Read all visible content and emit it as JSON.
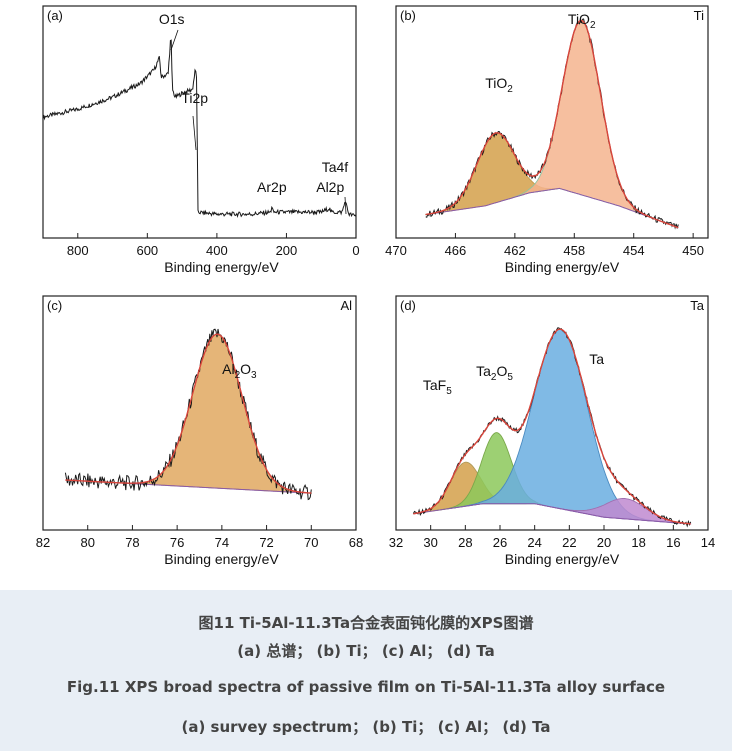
{
  "caption": {
    "cn_title": "图11 Ti-5Al-11.3Ta合金表面钝化膜的XPS图谱",
    "cn_sub": "(a) 总谱； (b) Ti； (c) Al； (d) Ta",
    "en_title": "Fig.11 XPS broad spectra of passive film on Ti-5Al-11.3Ta alloy surface",
    "en_sub": "(a) survey spectrum； (b) Ti； (c) Al； (d) Ta"
  },
  "colors": {
    "frame": "#222222",
    "spectrum": "#1a1a1a",
    "envelope": "#d9453b",
    "background_line": "#8a5aa8",
    "tio2_fill": "#f5b48e",
    "tio2_small_fill": "#d4a04a",
    "al2o3_fill": "#e0a860",
    "ta_fill": "#6aaee0",
    "ta2o5_fill": "#8cc85a",
    "taf5_fill": "#d4a04a",
    "tail_fill": "#c08ad0"
  },
  "chart_data": [
    {
      "panel": "(a)",
      "type": "line",
      "xlabel": "Binding energy/eV",
      "ylabel": "",
      "xlim": [
        900,
        0
      ],
      "reversed_x": true,
      "x_ticks": [
        "800",
        "600",
        "400",
        "200",
        "0"
      ],
      "peak_labels": [
        {
          "text": "O1s",
          "x": 530
        },
        {
          "text": "Ti2p",
          "x": 458
        },
        {
          "text": "Ar2p",
          "x": 242
        },
        {
          "text": "Al2p",
          "x": 74
        },
        {
          "text": "Ta4f",
          "x": 26
        }
      ],
      "series": [
        {
          "values": [
            [
              900,
              58
            ],
            [
              800,
              62
            ],
            [
              700,
              68
            ],
            [
              620,
              75
            ],
            [
              580,
              82
            ],
            [
              565,
              88
            ],
            [
              560,
              78
            ],
            [
              540,
              80
            ],
            [
              532,
              100
            ],
            [
              528,
              72
            ],
            [
              520,
              68
            ],
            [
              500,
              70
            ],
            [
              470,
              72
            ],
            [
              462,
              82
            ],
            [
              458,
              78
            ],
            [
              455,
              10
            ],
            [
              400,
              9
            ],
            [
              300,
              9
            ],
            [
              245,
              10
            ],
            [
              242,
              13
            ],
            [
              238,
              10
            ],
            [
              150,
              10
            ],
            [
              100,
              10
            ],
            [
              76,
              12
            ],
            [
              72,
              10
            ],
            [
              40,
              10
            ],
            [
              30,
              16
            ],
            [
              26,
              12
            ],
            [
              20,
              9
            ],
            [
              0,
              8
            ]
          ]
        }
      ]
    },
    {
      "panel": "(b)",
      "corner_label": "Ti",
      "type": "area",
      "xlabel": "Binding energy/eV",
      "xlim": [
        470,
        449
      ],
      "reversed_x": true,
      "x_ticks": [
        "470",
        "466",
        "462",
        "458",
        "454",
        "450"
      ],
      "peak_labels": [
        {
          "text": "TiO",
          "sub": "2",
          "x": 463.2
        },
        {
          "text": "TiO",
          "sub": "2",
          "x": 457.5
        }
      ],
      "components": [
        {
          "name": "TiO2",
          "center": 463.3,
          "fwhm": 3.0,
          "height": 32
        },
        {
          "name": "TiO2",
          "center": 457.5,
          "fwhm": 3.0,
          "height": 80
        }
      ],
      "background": [
        [
          468,
          8
        ],
        [
          464,
          12
        ],
        [
          461,
          18
        ],
        [
          459,
          20
        ],
        [
          455,
          12
        ],
        [
          451,
          2
        ]
      ]
    },
    {
      "panel": "(c)",
      "corner_label": "Al",
      "type": "area",
      "xlabel": "Binding energy/eV",
      "xlim": [
        82,
        68
      ],
      "reversed_x": true,
      "x_ticks": [
        "82",
        "80",
        "78",
        "76",
        "74",
        "72",
        "70",
        "68"
      ],
      "peak_labels": [
        {
          "text": "Al",
          "sub": "2",
          "text2": "O",
          "sub2": "3",
          "x": 74.2
        }
      ],
      "components": [
        {
          "name": "Al2O3",
          "center": 74.2,
          "fwhm": 2.6,
          "height": 70
        }
      ],
      "background": [
        [
          81,
          20
        ],
        [
          70,
          14
        ]
      ]
    },
    {
      "panel": "(d)",
      "corner_label": "Ta",
      "type": "area",
      "xlabel": "Binding energy/eV",
      "xlim": [
        32,
        14
      ],
      "reversed_x": true,
      "x_ticks": [
        "32",
        "30",
        "28",
        "26",
        "24",
        "22",
        "20",
        "18",
        "16",
        "14"
      ],
      "peak_labels": [
        {
          "text": "TaF",
          "sub": "5",
          "x": 28.0
        },
        {
          "text": "Ta",
          "sub": "2",
          "text2": "O",
          "sub2": "5",
          "x": 26.2
        },
        {
          "text": "Ta",
          "x": 22.5
        }
      ],
      "components": [
        {
          "name": "TaF5",
          "center": 28.0,
          "fwhm": 2.0,
          "height": 26
        },
        {
          "name": "Ta2O5",
          "center": 26.2,
          "fwhm": 2.0,
          "height": 42
        },
        {
          "name": "Ta",
          "center": 22.5,
          "fwhm": 3.6,
          "height": 106
        },
        {
          "name": "",
          "center": 18.8,
          "fwhm": 2.8,
          "height": 12
        }
      ],
      "background": [
        [
          31,
          6
        ],
        [
          27,
          12
        ],
        [
          24,
          12
        ],
        [
          20,
          4
        ],
        [
          15,
          0
        ]
      ]
    }
  ]
}
